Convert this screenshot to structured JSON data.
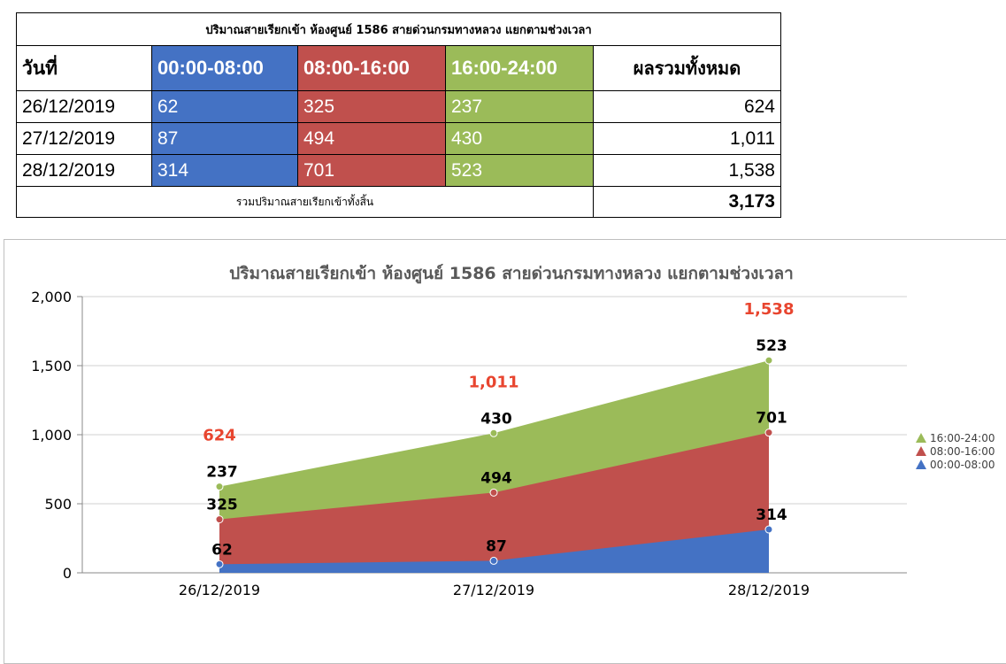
{
  "table": {
    "title": "ปริมาณสายเรียกเข้า ห้องศูนย์ 1586 สายด่วนกรมทางหลวง แยกตามช่วงเวลา",
    "headers": [
      "วันที่",
      "00:00-08:00",
      "08:00-16:00",
      "16:00-24:00",
      "ผลรวมทั้งหมด"
    ],
    "rows": [
      {
        "date": "26/12/2019",
        "s1": "62",
        "s2": "325",
        "s3": "237",
        "total": "624"
      },
      {
        "date": "27/12/2019",
        "s1": "87",
        "s2": "494",
        "s3": "430",
        "total": "1,011"
      },
      {
        "date": "28/12/2019",
        "s1": "314",
        "s2": "701",
        "s3": "523",
        "total": "1,538"
      }
    ],
    "footer_label": "รวมปริมาณสายเรียกเข้าทั้งสิ้น",
    "footer_total": "3,173"
  },
  "colors": {
    "blue": "#4472c4",
    "red": "#c0504d",
    "green": "#9bbb59",
    "total_label": "#e8452f"
  },
  "chart_data": {
    "type": "area",
    "stacked": true,
    "title": "ปริมาณสายเรียกเข้า ห้องศูนย์ 1586 สายด่วนกรมทางหลวง แยกตามช่วงเวลา",
    "categories": [
      "26/12/2019",
      "27/12/2019",
      "28/12/2019"
    ],
    "series": [
      {
        "name": "00:00-08:00",
        "values": [
          62,
          87,
          314
        ],
        "labels": [
          "62",
          "87",
          "314"
        ],
        "color": "#4472c4"
      },
      {
        "name": "08:00-16:00",
        "values": [
          325,
          494,
          701
        ],
        "labels": [
          "325",
          "494",
          "701"
        ],
        "color": "#c0504d"
      },
      {
        "name": "16:00-24:00",
        "values": [
          237,
          430,
          523
        ],
        "labels": [
          "237",
          "430",
          "523"
        ],
        "color": "#9bbb59"
      }
    ],
    "totals": [
      "624",
      "1,011",
      "1,538"
    ],
    "yticks": [
      "0",
      "500",
      "1,000",
      "1,500",
      "2,000"
    ],
    "ylim": [
      0,
      2000
    ],
    "grid": true,
    "legend_position": "right"
  }
}
